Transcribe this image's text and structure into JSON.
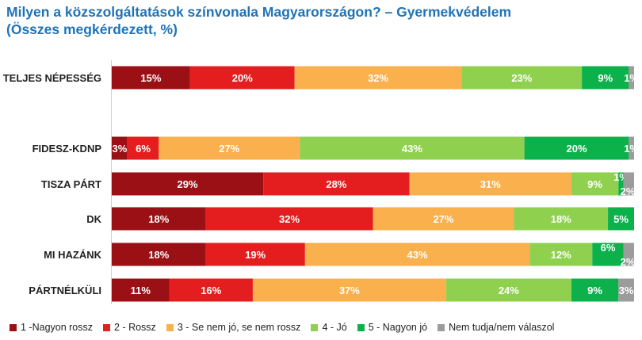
{
  "title_line1": "Milyen a közszolgáltatások színvonala Magyarországon? – Gyermekvédelem",
  "title_line2": "(Összes megkérdezett, %)",
  "colors": [
    "#9b1015",
    "#e41e1f",
    "#f9b04d",
    "#8fd14f",
    "#0db14b",
    "#9c9c9c"
  ],
  "chart_data": {
    "type": "bar",
    "stacked": true,
    "orientation": "horizontal",
    "categories": [
      "TELJES NÉPESSÉG",
      "FIDESZ-KDNP",
      "TISZA PÁRT",
      "DK",
      "MI HAZÁNK",
      "PÁRTNÉLKÜLI"
    ],
    "series": [
      {
        "name": "1 -Nagyon rossz",
        "values": [
          15,
          3,
          29,
          18,
          18,
          11
        ]
      },
      {
        "name": "2 - Rossz",
        "values": [
          20,
          6,
          28,
          32,
          19,
          16
        ]
      },
      {
        "name": "3 - Se nem jó, se nem rossz",
        "values": [
          32,
          27,
          31,
          27,
          43,
          37
        ]
      },
      {
        "name": "4 - Jó",
        "values": [
          23,
          43,
          9,
          18,
          12,
          24
        ]
      },
      {
        "name": "5 - Nagyon jó",
        "values": [
          9,
          20,
          1,
          5,
          6,
          9
        ]
      },
      {
        "name": "Nem tudja/nem válaszol",
        "values": [
          1,
          1,
          2,
          0,
          2,
          3
        ]
      }
    ],
    "value_labels": [
      [
        "15%",
        "20%",
        "32%",
        "23%",
        "9%",
        "1%"
      ],
      [
        "3%",
        "6%",
        "27%",
        "43%",
        "20%",
        "1%"
      ],
      [
        "29%",
        "28%",
        "31%",
        "9%",
        "1%",
        "2%"
      ],
      [
        "18%",
        "32%",
        "27%",
        "18%",
        "5%",
        ""
      ],
      [
        "18%",
        "19%",
        "43%",
        "12%",
        "6%",
        "2%"
      ],
      [
        "11%",
        "16%",
        "37%",
        "24%",
        "9%",
        "3%"
      ]
    ],
    "xlim": [
      0,
      100
    ],
    "unit": "%",
    "legend_position": "bottom"
  }
}
